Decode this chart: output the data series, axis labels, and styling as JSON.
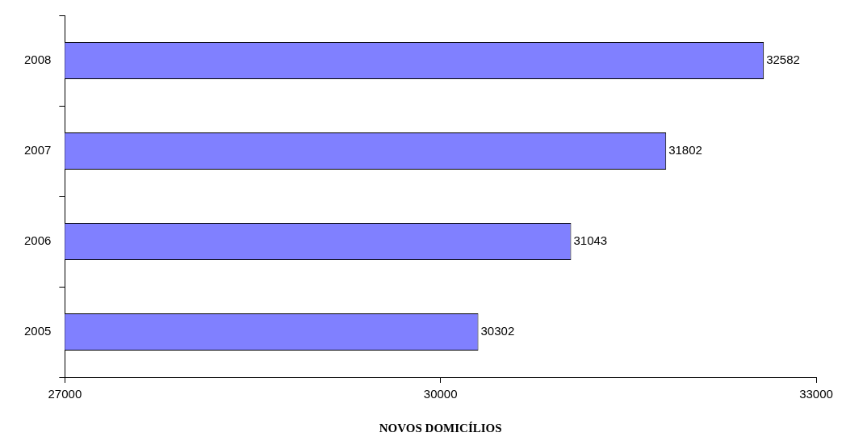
{
  "chart_data": {
    "type": "bar",
    "orientation": "horizontal",
    "xlabel": "NOVOS DOMICÍLIOS",
    "categories": [
      "2008",
      "2007",
      "2006",
      "2005"
    ],
    "values": [
      32582,
      31802,
      31043,
      30302
    ],
    "color": "#8080ff",
    "xlim": [
      27000,
      33000
    ],
    "xticks": [
      27000,
      30000,
      33000
    ],
    "grid": false,
    "legend": false,
    "data_labels": true
  }
}
